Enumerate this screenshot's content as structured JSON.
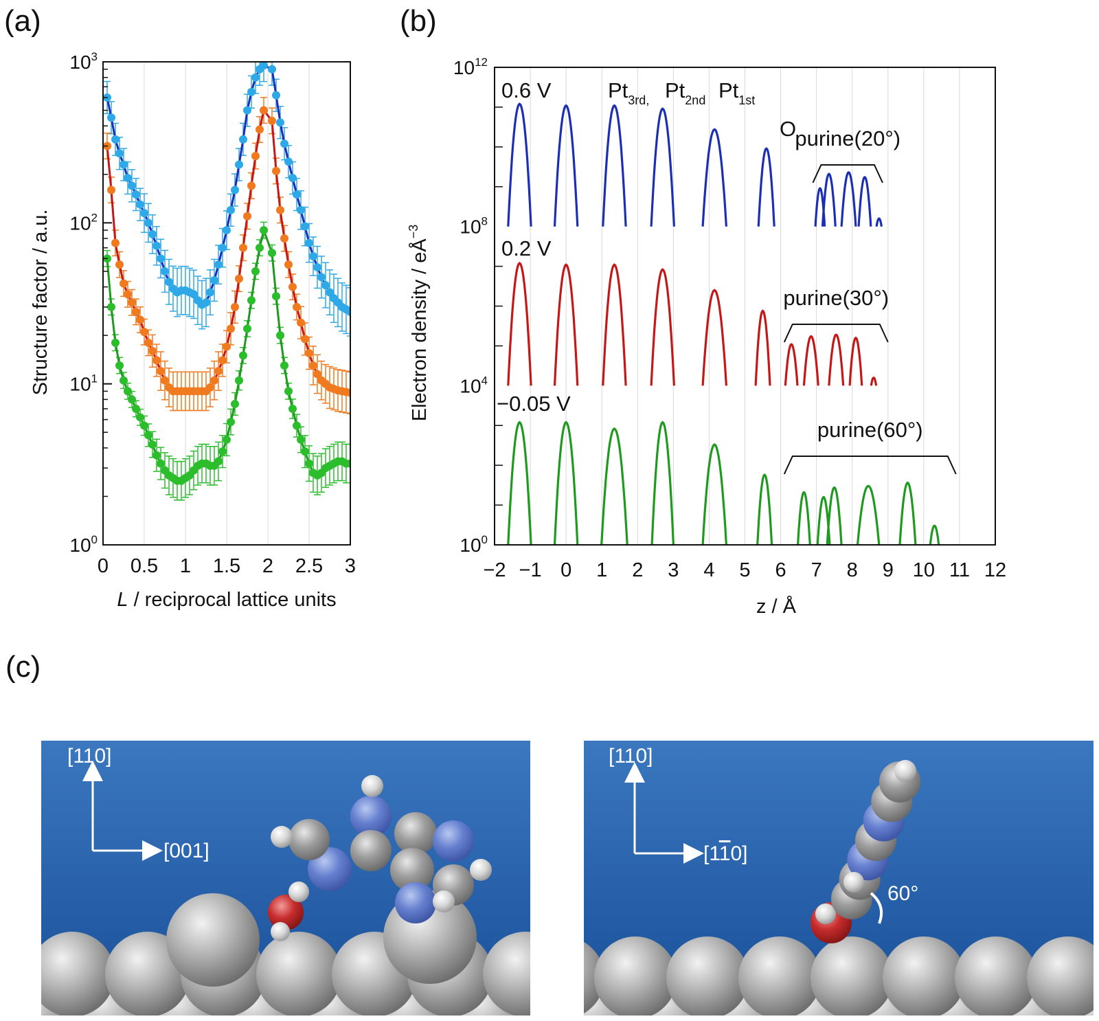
{
  "panels": {
    "a_label": "(a)",
    "b_label": "(b)",
    "c_label": "(c)"
  },
  "chart_data": [
    {
      "type": "scatter",
      "id": "a",
      "ylabel": "Structure factor / a.u.",
      "xlabel_italic": "L",
      "xlabel_rest": " / reciprocal lattice units",
      "xlim": [
        0,
        3
      ],
      "ylim": [
        1,
        1000
      ],
      "yscale": "log",
      "grid": "vertical",
      "x_ticks": [
        "0",
        "0.5",
        "1",
        "1.5",
        "2",
        "2.5",
        "3"
      ],
      "y_ticks": [
        {
          "base": "10",
          "exp": "0"
        },
        {
          "base": "10",
          "exp": "1"
        },
        {
          "base": "10",
          "exp": "2"
        },
        {
          "base": "10",
          "exp": "3"
        }
      ],
      "series": [
        {
          "point_color": "#2ea8e6",
          "line_color": "#1c2fb4",
          "x": [
            0.05,
            0.1,
            0.15,
            0.2,
            0.25,
            0.3,
            0.35,
            0.4,
            0.45,
            0.5,
            0.55,
            0.6,
            0.65,
            0.7,
            0.75,
            0.8,
            0.85,
            0.9,
            0.95,
            1.0,
            1.05,
            1.1,
            1.15,
            1.2,
            1.25,
            1.3,
            1.35,
            1.4,
            1.45,
            1.5,
            1.55,
            1.6,
            1.65,
            1.7,
            1.75,
            1.8,
            1.85,
            1.9,
            1.95,
            2.05,
            2.1,
            2.15,
            2.2,
            2.25,
            2.3,
            2.35,
            2.4,
            2.45,
            2.5,
            2.55,
            2.6,
            2.65,
            2.7,
            2.75,
            2.8,
            2.85,
            2.9,
            2.95,
            3.0
          ],
          "y": [
            600,
            450,
            330,
            270,
            230,
            190,
            170,
            150,
            130,
            115,
            100,
            85,
            72,
            60,
            50,
            43,
            39,
            37,
            38,
            38,
            37,
            36,
            33,
            31,
            32,
            37,
            44,
            55,
            70,
            90,
            120,
            160,
            230,
            330,
            500,
            650,
            800,
            900,
            950,
            900,
            620,
            420,
            310,
            240,
            190,
            150,
            120,
            95,
            75,
            62,
            53,
            46,
            41,
            37,
            34,
            32,
            30,
            29,
            28
          ],
          "err": [
            0.1,
            0.1,
            0.1,
            0.1,
            0.1,
            0.1,
            0.1,
            0.1,
            0.1,
            0.12,
            0.12,
            0.12,
            0.12,
            0.12,
            0.13,
            0.14,
            0.14,
            0.15,
            0.15,
            0.15,
            0.15,
            0.15,
            0.15,
            0.15,
            0.15,
            0.14,
            0.13,
            0.12,
            0.12,
            0.12,
            0.1,
            0.1,
            0.1,
            0.1,
            0.1,
            0.1,
            0.1,
            0.1,
            0.1,
            0.1,
            0.1,
            0.1,
            0.1,
            0.1,
            0.1,
            0.1,
            0.12,
            0.12,
            0.12,
            0.12,
            0.13,
            0.13,
            0.14,
            0.14,
            0.15,
            0.15,
            0.15,
            0.15,
            0.15
          ]
        },
        {
          "point_color": "#f07a1f",
          "line_color": "#c41818",
          "x": [
            0.05,
            0.1,
            0.15,
            0.2,
            0.25,
            0.3,
            0.35,
            0.4,
            0.45,
            0.5,
            0.55,
            0.6,
            0.65,
            0.7,
            0.75,
            0.8,
            0.85,
            0.9,
            0.95,
            1.0,
            1.05,
            1.1,
            1.15,
            1.2,
            1.25,
            1.3,
            1.35,
            1.4,
            1.45,
            1.5,
            1.55,
            1.6,
            1.65,
            1.7,
            1.75,
            1.8,
            1.85,
            1.9,
            1.95,
            2.05,
            2.1,
            2.15,
            2.2,
            2.25,
            2.3,
            2.35,
            2.4,
            2.45,
            2.5,
            2.55,
            2.6,
            2.65,
            2.7,
            2.75,
            2.8,
            2.85,
            2.9,
            2.95,
            3.0
          ],
          "y": [
            300,
            160,
            75,
            55,
            42,
            36,
            32,
            28,
            25,
            21,
            18,
            16,
            14,
            12,
            10.5,
            9.5,
            9,
            9,
            9,
            9,
            9,
            9,
            9,
            9,
            9,
            9.5,
            10.5,
            12,
            14,
            17,
            22,
            30,
            45,
            70,
            110,
            170,
            260,
            380,
            500,
            430,
            210,
            120,
            80,
            55,
            40,
            30,
            24,
            19,
            15.5,
            13,
            11.5,
            10.5,
            10,
            9.5,
            9.3,
            9.1,
            9,
            8.9,
            8.8
          ],
          "err": [
            0.08,
            0.08,
            0.08,
            0.08,
            0.08,
            0.08,
            0.08,
            0.08,
            0.08,
            0.08,
            0.08,
            0.1,
            0.1,
            0.12,
            0.12,
            0.12,
            0.12,
            0.12,
            0.12,
            0.12,
            0.12,
            0.12,
            0.12,
            0.12,
            0.12,
            0.12,
            0.12,
            0.12,
            0.1,
            0.1,
            0.1,
            0.1,
            0.08,
            0.08,
            0.08,
            0.08,
            0.08,
            0.08,
            0.08,
            0.08,
            0.08,
            0.08,
            0.08,
            0.08,
            0.08,
            0.08,
            0.1,
            0.1,
            0.1,
            0.12,
            0.12,
            0.12,
            0.12,
            0.13,
            0.13,
            0.13,
            0.13,
            0.13,
            0.13
          ]
        },
        {
          "point_color": "#2cbd2c",
          "line_color": "#1e9a1e",
          "x": [
            0.05,
            0.1,
            0.15,
            0.2,
            0.25,
            0.3,
            0.35,
            0.4,
            0.45,
            0.5,
            0.55,
            0.6,
            0.65,
            0.7,
            0.75,
            0.8,
            0.85,
            0.9,
            0.95,
            1.0,
            1.05,
            1.1,
            1.15,
            1.2,
            1.25,
            1.3,
            1.35,
            1.4,
            1.45,
            1.5,
            1.55,
            1.6,
            1.65,
            1.7,
            1.75,
            1.8,
            1.85,
            1.9,
            1.95,
            2.05,
            2.1,
            2.15,
            2.2,
            2.25,
            2.3,
            2.35,
            2.4,
            2.45,
            2.5,
            2.55,
            2.6,
            2.65,
            2.7,
            2.75,
            2.8,
            2.85,
            2.9,
            2.95,
            3.0
          ],
          "y": [
            60,
            30,
            18,
            13,
            10.5,
            9,
            8,
            7,
            6.2,
            5.5,
            4.8,
            4.2,
            3.6,
            3.2,
            2.9,
            2.7,
            2.6,
            2.5,
            2.5,
            2.6,
            2.7,
            2.9,
            3.1,
            3.2,
            3.2,
            3.1,
            3.1,
            3.3,
            3.8,
            4.5,
            5.8,
            7.5,
            10.5,
            15,
            22,
            33,
            50,
            70,
            90,
            65,
            35,
            20,
            13,
            9,
            7,
            5.5,
            4.5,
            3.8,
            3.2,
            2.8,
            2.7,
            2.8,
            3,
            3.1,
            3.2,
            3.3,
            3.3,
            3.2,
            3.2
          ],
          "err": [
            0.05,
            0.05,
            0.05,
            0.05,
            0.05,
            0.05,
            0.05,
            0.05,
            0.05,
            0.06,
            0.07,
            0.08,
            0.1,
            0.1,
            0.11,
            0.12,
            0.12,
            0.12,
            0.12,
            0.12,
            0.12,
            0.12,
            0.12,
            0.12,
            0.12,
            0.12,
            0.12,
            0.12,
            0.1,
            0.1,
            0.08,
            0.07,
            0.06,
            0.05,
            0.05,
            0.05,
            0.05,
            0.05,
            0.05,
            0.05,
            0.05,
            0.05,
            0.05,
            0.05,
            0.06,
            0.07,
            0.08,
            0.1,
            0.11,
            0.12,
            0.12,
            0.12,
            0.12,
            0.12,
            0.12,
            0.12,
            0.12,
            0.12,
            0.12
          ]
        }
      ]
    },
    {
      "type": "line",
      "id": "b",
      "ylabel_text": "Electron density / eÅ",
      "ylabel_exp": "−3",
      "xlabel": "z / Å",
      "xlim": [
        -2,
        12
      ],
      "x_ticks": [
        "−2",
        "−1",
        "0",
        "1",
        "2",
        "3",
        "4",
        "5",
        "6",
        "7",
        "8",
        "9",
        "10",
        "11",
        "12"
      ],
      "y_ticks": [
        {
          "base": "10",
          "exp": "0"
        },
        {
          "base": "10",
          "exp": "4"
        },
        {
          "base": "10",
          "exp": "8"
        },
        {
          "base": "10",
          "exp": "12"
        }
      ],
      "grid": "vertical",
      "profiles": [
        {
          "label": "0.6 V",
          "color": "#1c2fb4",
          "peaks": [
            {
              "z": -1.3,
              "height": 0.77,
              "width": 0.32
            },
            {
              "z": 0.0,
              "height": 0.76,
              "width": 0.32
            },
            {
              "z": 1.35,
              "height": 0.76,
              "width": 0.32
            },
            {
              "z": 2.7,
              "height": 0.74,
              "width": 0.32
            },
            {
              "z": 4.15,
              "height": 0.61,
              "width": 0.33
            },
            {
              "z": 5.6,
              "height": 0.49,
              "width": 0.22
            },
            {
              "z": 7.1,
              "height": 0.24,
              "width": 0.13
            },
            {
              "z": 7.35,
              "height": 0.33,
              "width": 0.18
            },
            {
              "z": 7.9,
              "height": 0.34,
              "width": 0.2
            },
            {
              "z": 8.35,
              "height": 0.31,
              "width": 0.17
            },
            {
              "z": 8.75,
              "height": 0.05,
              "width": 0.07
            }
          ],
          "bracket_label": "purine(20°)",
          "bracket": [
            6.9,
            8.85
          ]
        },
        {
          "label": "0.2 V",
          "color": "#c41818",
          "peaks": [
            {
              "z": -1.3,
              "height": 0.77,
              "width": 0.32
            },
            {
              "z": 0.0,
              "height": 0.76,
              "width": 0.32
            },
            {
              "z": 1.35,
              "height": 0.76,
              "width": 0.32
            },
            {
              "z": 2.7,
              "height": 0.73,
              "width": 0.32
            },
            {
              "z": 4.15,
              "height": 0.6,
              "width": 0.33
            },
            {
              "z": 5.5,
              "height": 0.47,
              "width": 0.2
            },
            {
              "z": 6.3,
              "height": 0.26,
              "width": 0.17
            },
            {
              "z": 6.85,
              "height": 0.31,
              "width": 0.2
            },
            {
              "z": 7.55,
              "height": 0.32,
              "width": 0.2
            },
            {
              "z": 8.1,
              "height": 0.3,
              "width": 0.17
            },
            {
              "z": 8.6,
              "height": 0.05,
              "width": 0.07
            }
          ],
          "bracket_label": "purine(30°)",
          "bracket": [
            6.1,
            9.0
          ]
        },
        {
          "label": "−0.05 V",
          "color": "#1e9a1e",
          "peaks": [
            {
              "z": -1.3,
              "height": 0.77,
              "width": 0.32
            },
            {
              "z": 0.0,
              "height": 0.77,
              "width": 0.32
            },
            {
              "z": 1.35,
              "height": 0.73,
              "width": 0.36
            },
            {
              "z": 2.7,
              "height": 0.77,
              "width": 0.3
            },
            {
              "z": 4.15,
              "height": 0.63,
              "width": 0.33
            },
            {
              "z": 5.55,
              "height": 0.44,
              "width": 0.2
            },
            {
              "z": 6.65,
              "height": 0.33,
              "width": 0.17
            },
            {
              "z": 7.2,
              "height": 0.3,
              "width": 0.17
            },
            {
              "z": 7.5,
              "height": 0.36,
              "width": 0.2
            },
            {
              "z": 8.45,
              "height": 0.37,
              "width": 0.3
            },
            {
              "z": 9.55,
              "height": 0.39,
              "width": 0.22
            },
            {
              "z": 10.3,
              "height": 0.12,
              "width": 0.12
            }
          ],
          "bracket_label": "purine(60°)",
          "bracket": [
            6.1,
            10.9
          ]
        }
      ],
      "layer_labels": {
        "pt3": {
          "base": "Pt",
          "sub": "3rd,"
        },
        "pt2": {
          "base": "Pt",
          "sub": "2nd"
        },
        "pt1": {
          "base": "Pt",
          "sub": "1st"
        },
        "o": "O"
      }
    }
  ],
  "scenes": {
    "left": {
      "axis_up": "[110]",
      "axis_right": "[001]"
    },
    "right": {
      "axis_up": "[110]",
      "axis_right_pre": "[1",
      "axis_right_bar": "1",
      "axis_right_post": "0]",
      "angle": "60°"
    }
  },
  "colors": {
    "scene_top": "#3b78bf",
    "scene_bottom": "#184e98",
    "pt_atom": "#a8a8a8",
    "carbon": "#9a9a9a",
    "nitrogen": "#5f7ecb",
    "oxygen": "#c42b2b",
    "hydrogen": "#d9d9d9"
  }
}
